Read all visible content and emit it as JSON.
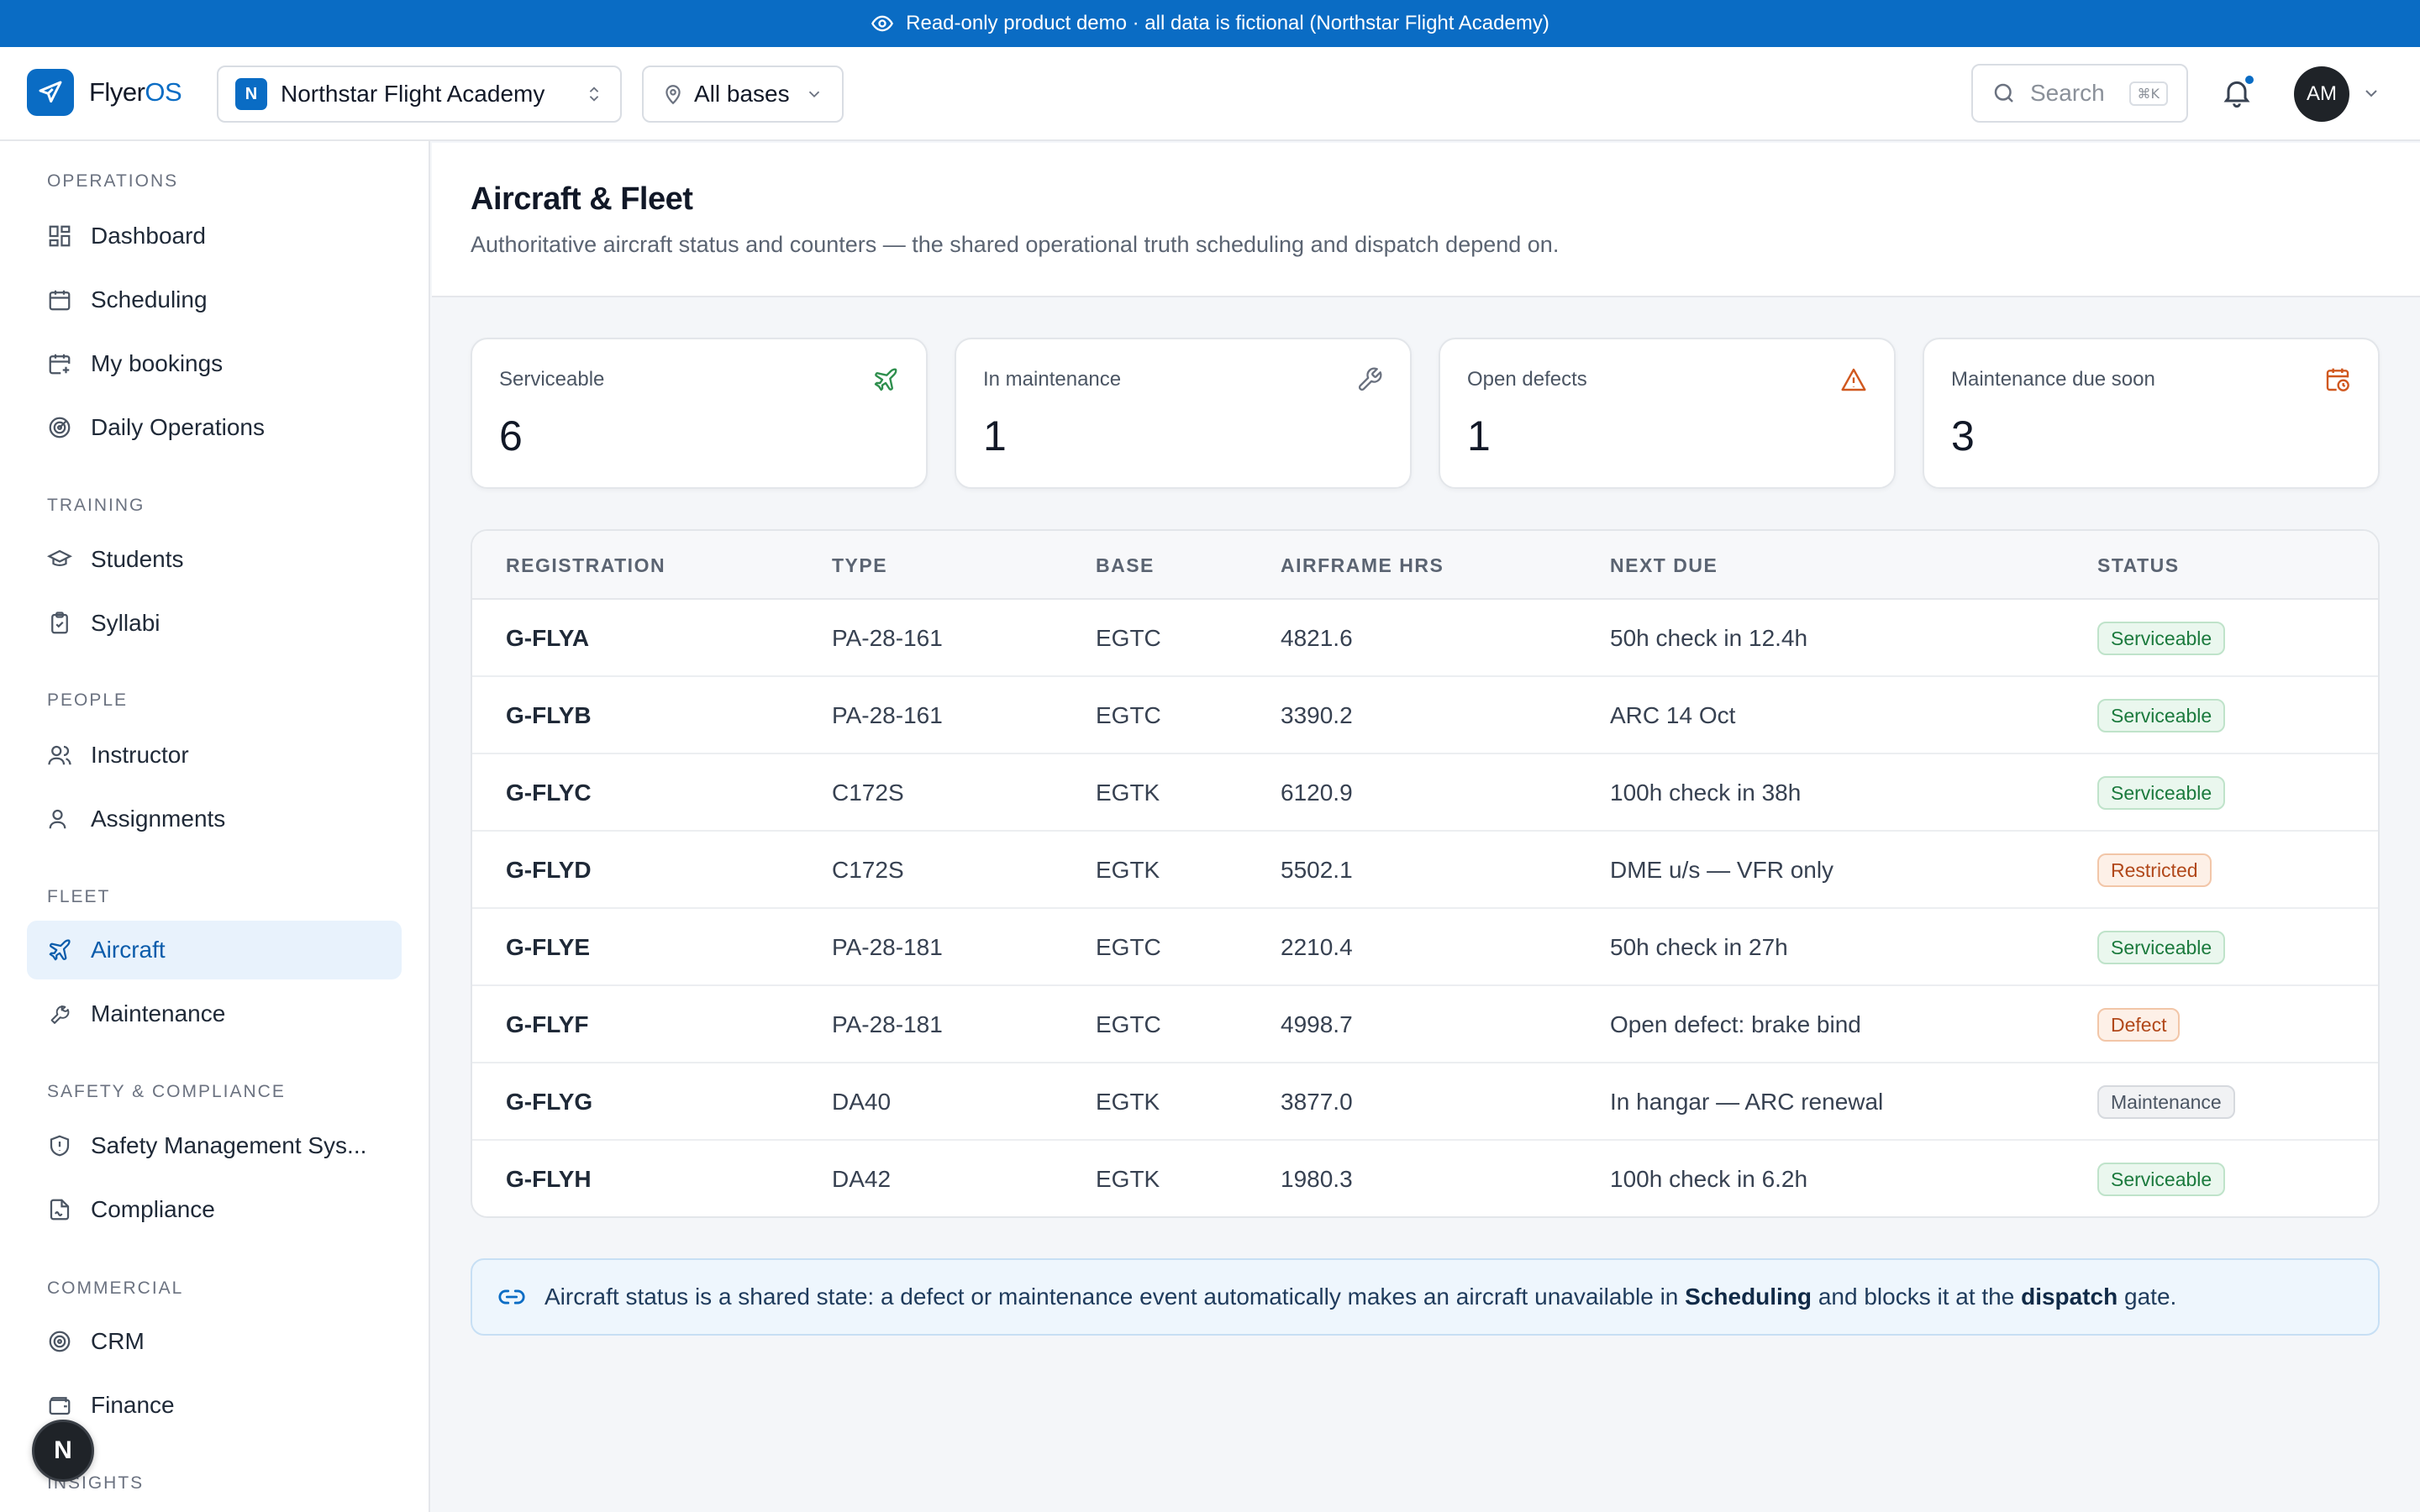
{
  "banner": {
    "text": "Read-only product demo · all data is fictional (Northstar Flight Academy)",
    "icon": "eye-icon"
  },
  "topbar": {
    "logo_main": "Flyer",
    "logo_accent": "OS",
    "org_badge": "N",
    "org_name": "Northstar Flight Academy",
    "base_filter": "All bases",
    "search_placeholder": "Search",
    "search_shortcut": "⌘K",
    "avatar_initials": "AM"
  },
  "sidebar": {
    "sections": [
      {
        "label": "OPERATIONS",
        "items": [
          "Dashboard",
          "Scheduling",
          "My bookings",
          "Daily Operations"
        ]
      },
      {
        "label": "TRAINING",
        "items": [
          "Students",
          "Syllabi"
        ]
      },
      {
        "label": "PEOPLE",
        "items": [
          "Instructor",
          "Assignments"
        ]
      },
      {
        "label": "FLEET",
        "items": [
          "Aircraft",
          "Maintenance"
        ]
      },
      {
        "label": "SAFETY & COMPLIANCE",
        "items": [
          "Safety Management Sys...",
          "Compliance"
        ]
      },
      {
        "label": "COMMERCIAL",
        "items": [
          "CRM",
          "Finance"
        ]
      },
      {
        "label": "INSIGHTS",
        "items": []
      }
    ],
    "active_item": "Aircraft",
    "fab_label": "N"
  },
  "page": {
    "title": "Aircraft & Fleet",
    "subtitle": "Authoritative aircraft status and counters — the shared operational truth scheduling and dispatch depend on."
  },
  "stats": [
    {
      "label": "Serviceable",
      "value": "6",
      "icon": "plane-icon",
      "color": "#2f8f4e"
    },
    {
      "label": "In maintenance",
      "value": "1",
      "icon": "wrench-icon",
      "color": "#6b7280"
    },
    {
      "label": "Open defects",
      "value": "1",
      "icon": "warning-icon",
      "color": "#d0581f"
    },
    {
      "label": "Maintenance due soon",
      "value": "3",
      "icon": "calendar-clock-icon",
      "color": "#d0581f"
    }
  ],
  "table": {
    "columns": [
      "REGISTRATION",
      "TYPE",
      "BASE",
      "AIRFRAME HRS",
      "NEXT DUE",
      "STATUS"
    ],
    "rows": [
      {
        "reg": "G-FLYA",
        "type": "PA-28-161",
        "base": "EGTC",
        "hrs": "4821.6",
        "next": "50h check in 12.4h",
        "status": "Serviceable",
        "kind": "ok"
      },
      {
        "reg": "G-FLYB",
        "type": "PA-28-161",
        "base": "EGTC",
        "hrs": "3390.2",
        "next": "ARC 14 Oct",
        "status": "Serviceable",
        "kind": "ok"
      },
      {
        "reg": "G-FLYC",
        "type": "C172S",
        "base": "EGTK",
        "hrs": "6120.9",
        "next": "100h check in 38h",
        "status": "Serviceable",
        "kind": "ok"
      },
      {
        "reg": "G-FLYD",
        "type": "C172S",
        "base": "EGTK",
        "hrs": "5502.1",
        "next": "DME u/s — VFR only",
        "status": "Restricted",
        "kind": "restr"
      },
      {
        "reg": "G-FLYE",
        "type": "PA-28-181",
        "base": "EGTC",
        "hrs": "2210.4",
        "next": "50h check in 27h",
        "status": "Serviceable",
        "kind": "ok"
      },
      {
        "reg": "G-FLYF",
        "type": "PA-28-181",
        "base": "EGTC",
        "hrs": "4998.7",
        "next": "Open defect: brake bind",
        "status": "Defect",
        "kind": "defect"
      },
      {
        "reg": "G-FLYG",
        "type": "DA40",
        "base": "EGTK",
        "hrs": "3877.0",
        "next": "In hangar — ARC renewal",
        "status": "Maintenance",
        "kind": "maint"
      },
      {
        "reg": "G-FLYH",
        "type": "DA42",
        "base": "EGTK",
        "hrs": "1980.3",
        "next": "100h check in 6.2h",
        "status": "Serviceable",
        "kind": "ok"
      }
    ]
  },
  "callout": {
    "part1": "Aircraft status is a shared state: a defect or maintenance event automatically makes an aircraft unavailable in ",
    "bold1": "Scheduling",
    "part2": " and blocks it at the ",
    "bold2": "dispatch",
    "part3": " gate."
  }
}
